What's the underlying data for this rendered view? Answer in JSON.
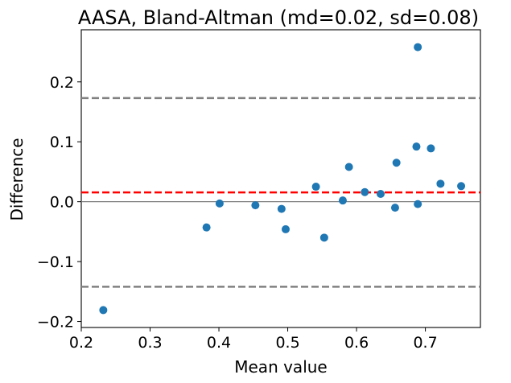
{
  "chart_data": {
    "type": "scatter",
    "title": "AASA, Bland-Altman (md=0.02, sd=0.08)",
    "xlabel": "Mean value",
    "ylabel": "Difference",
    "xlim": [
      0.2,
      0.78
    ],
    "ylim": [
      -0.21,
      0.287
    ],
    "xticks": [
      {
        "value": 0.2,
        "label": "0.2"
      },
      {
        "value": 0.3,
        "label": "0.3"
      },
      {
        "value": 0.4,
        "label": "0.4"
      },
      {
        "value": 0.5,
        "label": "0.5"
      },
      {
        "value": 0.6,
        "label": "0.6"
      },
      {
        "value": 0.7,
        "label": "0.7"
      }
    ],
    "yticks": [
      {
        "value": 0.2,
        "label": "0.2"
      },
      {
        "value": 0.1,
        "label": "0.1"
      },
      {
        "value": 0.0,
        "label": "0.0"
      },
      {
        "value": -0.1,
        "label": "−0.1"
      },
      {
        "value": -0.2,
        "label": "−0.2"
      }
    ],
    "grid": false,
    "legend": "none",
    "zero_line": 0.0,
    "mean_difference": 0.0155,
    "limits_of_agreement": [
      0.173,
      -0.142
    ],
    "colors": {
      "points": "#1f77b4",
      "mean_line": "#ff0000",
      "limit_lines": "#808080",
      "zero_line": "#808080"
    },
    "series": [
      {
        "points": [
          {
            "x": 0.232,
            "y": -0.181
          },
          {
            "x": 0.382,
            "y": -0.043
          },
          {
            "x": 0.401,
            "y": -0.003
          },
          {
            "x": 0.453,
            "y": -0.006
          },
          {
            "x": 0.491,
            "y": -0.012
          },
          {
            "x": 0.497,
            "y": -0.046
          },
          {
            "x": 0.541,
            "y": 0.025
          },
          {
            "x": 0.553,
            "y": -0.06
          },
          {
            "x": 0.58,
            "y": 0.002
          },
          {
            "x": 0.589,
            "y": 0.058
          },
          {
            "x": 0.612,
            "y": 0.016
          },
          {
            "x": 0.635,
            "y": 0.013
          },
          {
            "x": 0.656,
            "y": -0.01
          },
          {
            "x": 0.658,
            "y": 0.065
          },
          {
            "x": 0.687,
            "y": 0.092
          },
          {
            "x": 0.689,
            "y": -0.004
          },
          {
            "x": 0.689,
            "y": 0.258
          },
          {
            "x": 0.708,
            "y": 0.089
          },
          {
            "x": 0.722,
            "y": 0.03
          },
          {
            "x": 0.752,
            "y": 0.026
          }
        ]
      }
    ]
  }
}
